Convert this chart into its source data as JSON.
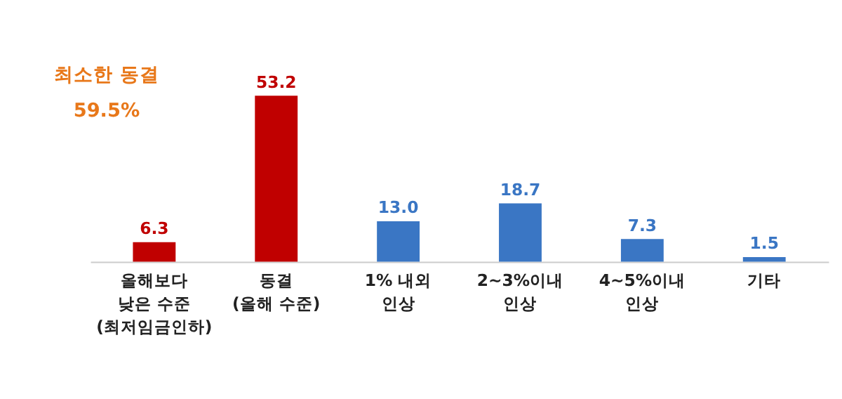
{
  "chart_data": {
    "type": "bar",
    "categories": [
      "올해보다\n낮은 수준\n(최저임금인하)",
      "동결\n(올해 수준)",
      "1% 내외\n인상",
      "2~3%이내\n인상",
      "4~5%이내\n인상",
      "기타"
    ],
    "values": [
      6.3,
      53.2,
      13.0,
      18.7,
      7.3,
      1.5
    ],
    "value_labels": [
      "6.3",
      "53.2",
      "13.0",
      "18.7",
      "7.3",
      "1.5"
    ],
    "colors": [
      "#c00000",
      "#c00000",
      "#3a76c4",
      "#3a76c4",
      "#3a76c4",
      "#3a76c4"
    ],
    "annotations": [
      "최소한 동결\n59.5%"
    ],
    "grid": false
  }
}
